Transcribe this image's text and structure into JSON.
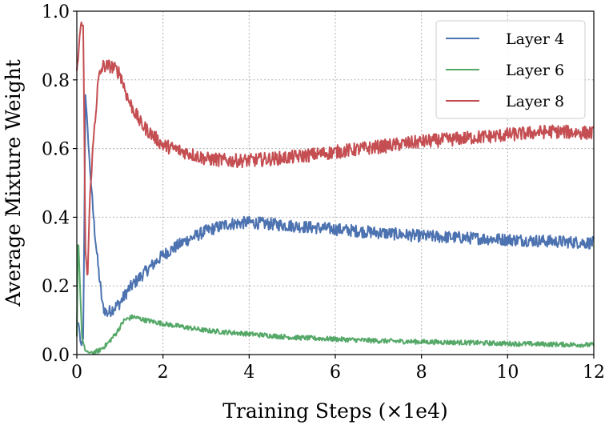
{
  "chart_data": {
    "type": "line",
    "title": "",
    "xlabel": "Training Steps (×1e4)",
    "ylabel": "Average Mixture Weight",
    "xlim": [
      0,
      12
    ],
    "ylim": [
      0,
      1.0
    ],
    "xticks": [
      0,
      2,
      4,
      6,
      8,
      10,
      12
    ],
    "yticks": [
      0.0,
      0.2,
      0.4,
      0.6,
      0.8,
      1.0
    ],
    "xtick_labels": [
      "0",
      "2",
      "4",
      "6",
      "8",
      "10",
      "12"
    ],
    "ytick_labels": [
      "0.0",
      "0.2",
      "0.4",
      "0.6",
      "0.8",
      "1.0"
    ],
    "grid": true,
    "legend_position": "top-right",
    "series": [
      {
        "name": "Layer 4",
        "color": "#4c72b0",
        "noise": 0.018,
        "points": [
          [
            0,
            0.1
          ],
          [
            0.05,
            0.08
          ],
          [
            0.1,
            0.02
          ],
          [
            0.15,
            0.05
          ],
          [
            0.2,
            0.76
          ],
          [
            0.3,
            0.55
          ],
          [
            0.4,
            0.38
          ],
          [
            0.5,
            0.25
          ],
          [
            0.6,
            0.14
          ],
          [
            0.7,
            0.12
          ],
          [
            0.8,
            0.13
          ],
          [
            1.0,
            0.15
          ],
          [
            1.2,
            0.19
          ],
          [
            1.5,
            0.23
          ],
          [
            2.0,
            0.29
          ],
          [
            2.5,
            0.33
          ],
          [
            3.0,
            0.36
          ],
          [
            3.5,
            0.38
          ],
          [
            4.0,
            0.385
          ],
          [
            5.0,
            0.375
          ],
          [
            6.0,
            0.365
          ],
          [
            7.0,
            0.355
          ],
          [
            8.0,
            0.345
          ],
          [
            9.0,
            0.34
          ],
          [
            10.0,
            0.335
          ],
          [
            11.0,
            0.33
          ],
          [
            12.0,
            0.325
          ]
        ]
      },
      {
        "name": "Layer 6",
        "color": "#55a868",
        "noise": 0.007,
        "points": [
          [
            0,
            0.05
          ],
          [
            0.03,
            0.35
          ],
          [
            0.08,
            0.18
          ],
          [
            0.12,
            0.05
          ],
          [
            0.2,
            0.01
          ],
          [
            0.3,
            0.005
          ],
          [
            0.5,
            0.01
          ],
          [
            0.7,
            0.03
          ],
          [
            0.9,
            0.06
          ],
          [
            1.1,
            0.1
          ],
          [
            1.3,
            0.11
          ],
          [
            1.6,
            0.1
          ],
          [
            2.0,
            0.09
          ],
          [
            2.5,
            0.08
          ],
          [
            3.0,
            0.07
          ],
          [
            4.0,
            0.06
          ],
          [
            5.0,
            0.05
          ],
          [
            6.0,
            0.045
          ],
          [
            7.0,
            0.04
          ],
          [
            8.0,
            0.037
          ],
          [
            9.0,
            0.035
          ],
          [
            10.0,
            0.032
          ],
          [
            11.0,
            0.03
          ],
          [
            12.0,
            0.028
          ]
        ]
      },
      {
        "name": "Layer 8",
        "color": "#c44e52",
        "noise": 0.02,
        "points": [
          [
            0,
            0.82
          ],
          [
            0.05,
            0.9
          ],
          [
            0.1,
            0.97
          ],
          [
            0.15,
            0.95
          ],
          [
            0.2,
            0.3
          ],
          [
            0.25,
            0.22
          ],
          [
            0.3,
            0.45
          ],
          [
            0.4,
            0.65
          ],
          [
            0.5,
            0.8
          ],
          [
            0.6,
            0.84
          ],
          [
            0.8,
            0.84
          ],
          [
            1.0,
            0.82
          ],
          [
            1.2,
            0.74
          ],
          [
            1.5,
            0.67
          ],
          [
            2.0,
            0.61
          ],
          [
            2.5,
            0.59
          ],
          [
            3.0,
            0.57
          ],
          [
            3.5,
            0.565
          ],
          [
            4.0,
            0.565
          ],
          [
            5.0,
            0.575
          ],
          [
            6.0,
            0.59
          ],
          [
            7.0,
            0.605
          ],
          [
            8.0,
            0.62
          ],
          [
            9.0,
            0.63
          ],
          [
            10.0,
            0.64
          ],
          [
            11.0,
            0.65
          ],
          [
            12.0,
            0.645
          ]
        ]
      }
    ]
  }
}
